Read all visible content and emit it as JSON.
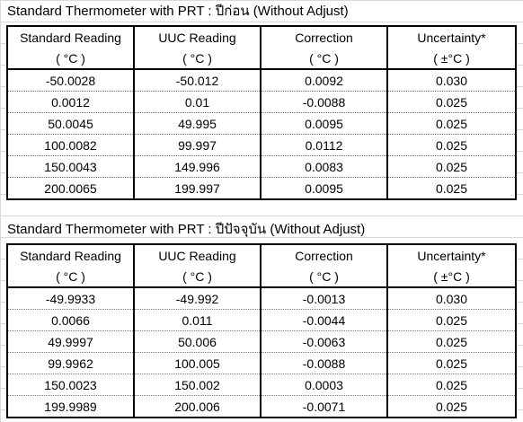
{
  "table1": {
    "title": "Standard Thermometer with PRT : ปีก่อน (Without Adjust)",
    "headers": [
      "Standard Reading",
      "UUC Reading",
      "Correction",
      "Uncertainty*"
    ],
    "units": [
      "( °C )",
      "( °C )",
      "( °C )",
      "( ±°C )"
    ],
    "rows": [
      [
        "-50.0028",
        "-50.012",
        "0.0092",
        "0.030"
      ],
      [
        "0.0012",
        "0.01",
        "-0.0088",
        "0.025"
      ],
      [
        "50.0045",
        "49.995",
        "0.0095",
        "0.025"
      ],
      [
        "100.0082",
        "99.997",
        "0.0112",
        "0.025"
      ],
      [
        "150.0043",
        "149.996",
        "0.0083",
        "0.025"
      ],
      [
        "200.0065",
        "199.997",
        "0.0095",
        "0.025"
      ]
    ]
  },
  "table2": {
    "title": "Standard Thermometer with PRT : ปีปัจจุบัน (Without Adjust)",
    "headers": [
      "Standard Reading",
      "UUC Reading",
      "Correction",
      "Uncertainty*"
    ],
    "units": [
      "( °C )",
      "( °C )",
      "( °C )",
      "( ±°C )"
    ],
    "rows": [
      [
        "-49.9933",
        "-49.992",
        "-0.0013",
        "0.030"
      ],
      [
        "0.0066",
        "0.011",
        "-0.0044",
        "0.025"
      ],
      [
        "49.9997",
        "50.006",
        "-0.0063",
        "0.025"
      ],
      [
        "99.9962",
        "100.005",
        "-0.0088",
        "0.025"
      ],
      [
        "150.0023",
        "150.002",
        "0.0003",
        "0.025"
      ],
      [
        "199.9989",
        "200.006",
        "-0.0071",
        "0.025"
      ]
    ]
  }
}
